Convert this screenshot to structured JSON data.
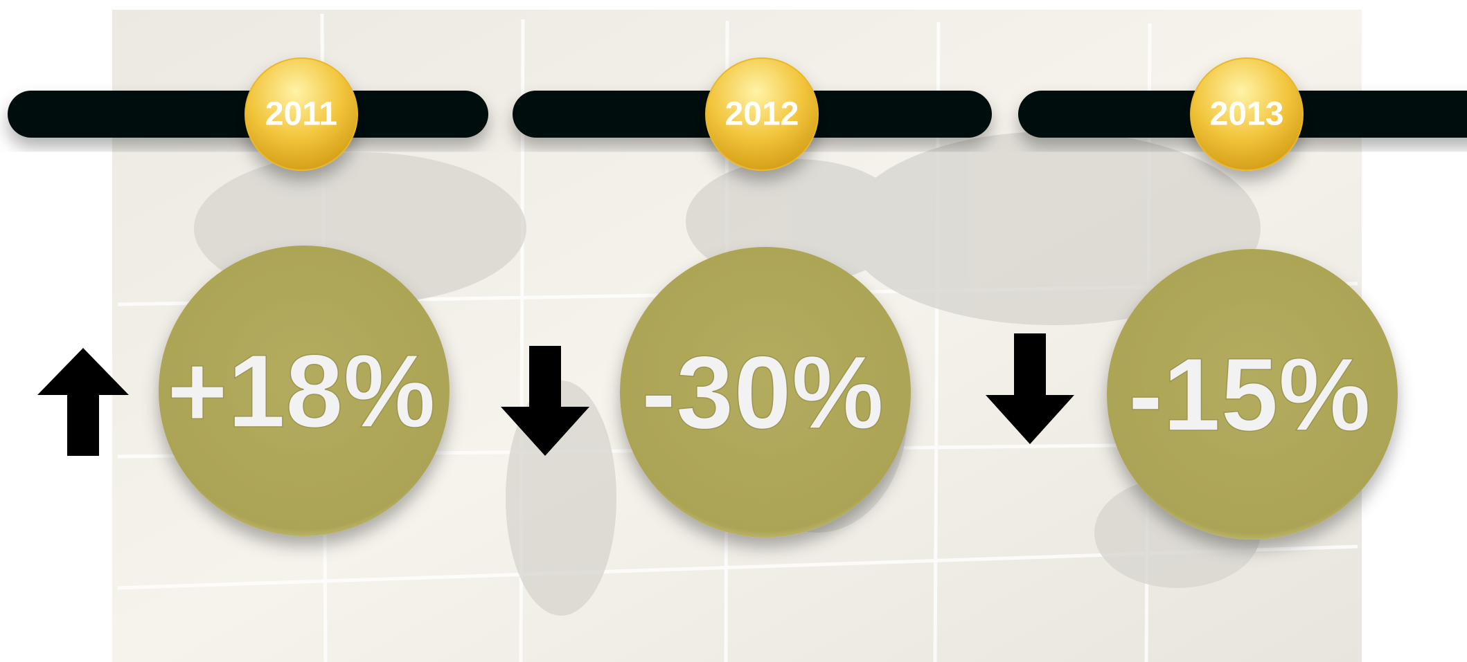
{
  "items": [
    {
      "year": "2011",
      "change": "+18%"
    },
    {
      "year": "2012",
      "change": "-30%"
    },
    {
      "year": "2013",
      "change": "-15%"
    }
  ]
}
